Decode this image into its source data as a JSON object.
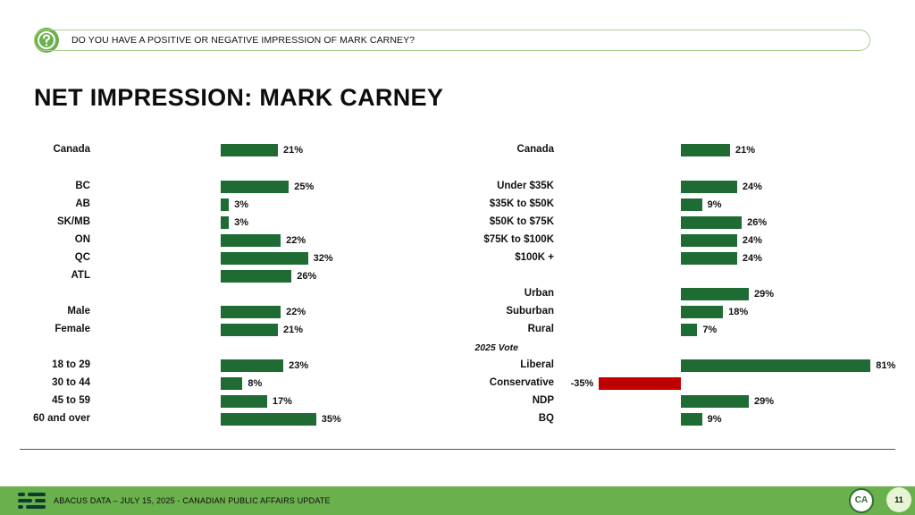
{
  "question": "DO YOU HAVE A POSITIVE OR NEGATIVE IMPRESSION OF MARK CARNEY?",
  "title": "NET IMPRESSION: MARK CARNEY",
  "footer": {
    "text": "ABACUS DATA – JULY 15, 2025 - CANADIAN PUBLIC AFFAIRS UPDATE",
    "logo_text": "CA",
    "page_number": "11"
  },
  "colors": {
    "positive": "#1e6b34",
    "negative": "#c00000",
    "accent": "#6ab04c"
  },
  "chart_data": [
    {
      "type": "bar",
      "orientation": "horizontal",
      "categories": [
        "Canada",
        "BC",
        "AB",
        "SK/MB",
        "ON",
        "QC",
        "ATL",
        "Male",
        "Female",
        "18 to 29",
        "30 to 44",
        "45 to 59",
        "60 and over"
      ],
      "values": [
        21,
        25,
        3,
        3,
        22,
        32,
        26,
        22,
        21,
        23,
        8,
        17,
        35
      ],
      "labels": [
        "21%",
        "25%",
        "3%",
        "3%",
        "22%",
        "32%",
        "26%",
        "22%",
        "21%",
        "23%",
        "8%",
        "17%",
        "35%"
      ]
    },
    {
      "type": "bar",
      "orientation": "horizontal",
      "categories": [
        "Canada",
        "Under $35K",
        "$35K to $50K",
        "$50K to $75K",
        "$75K to $100K",
        "$100K +",
        "Urban",
        "Suburban",
        "Rural",
        "Liberal",
        "Conservative",
        "NDP",
        "BQ"
      ],
      "group_label": "2025 Vote",
      "values": [
        21,
        24,
        9,
        26,
        24,
        24,
        29,
        18,
        7,
        81,
        -35,
        29,
        9
      ],
      "labels": [
        "21%",
        "24%",
        "9%",
        "26%",
        "24%",
        "24%",
        "29%",
        "18%",
        "7%",
        "81%",
        "-35%",
        "29%",
        "9%"
      ]
    }
  ]
}
